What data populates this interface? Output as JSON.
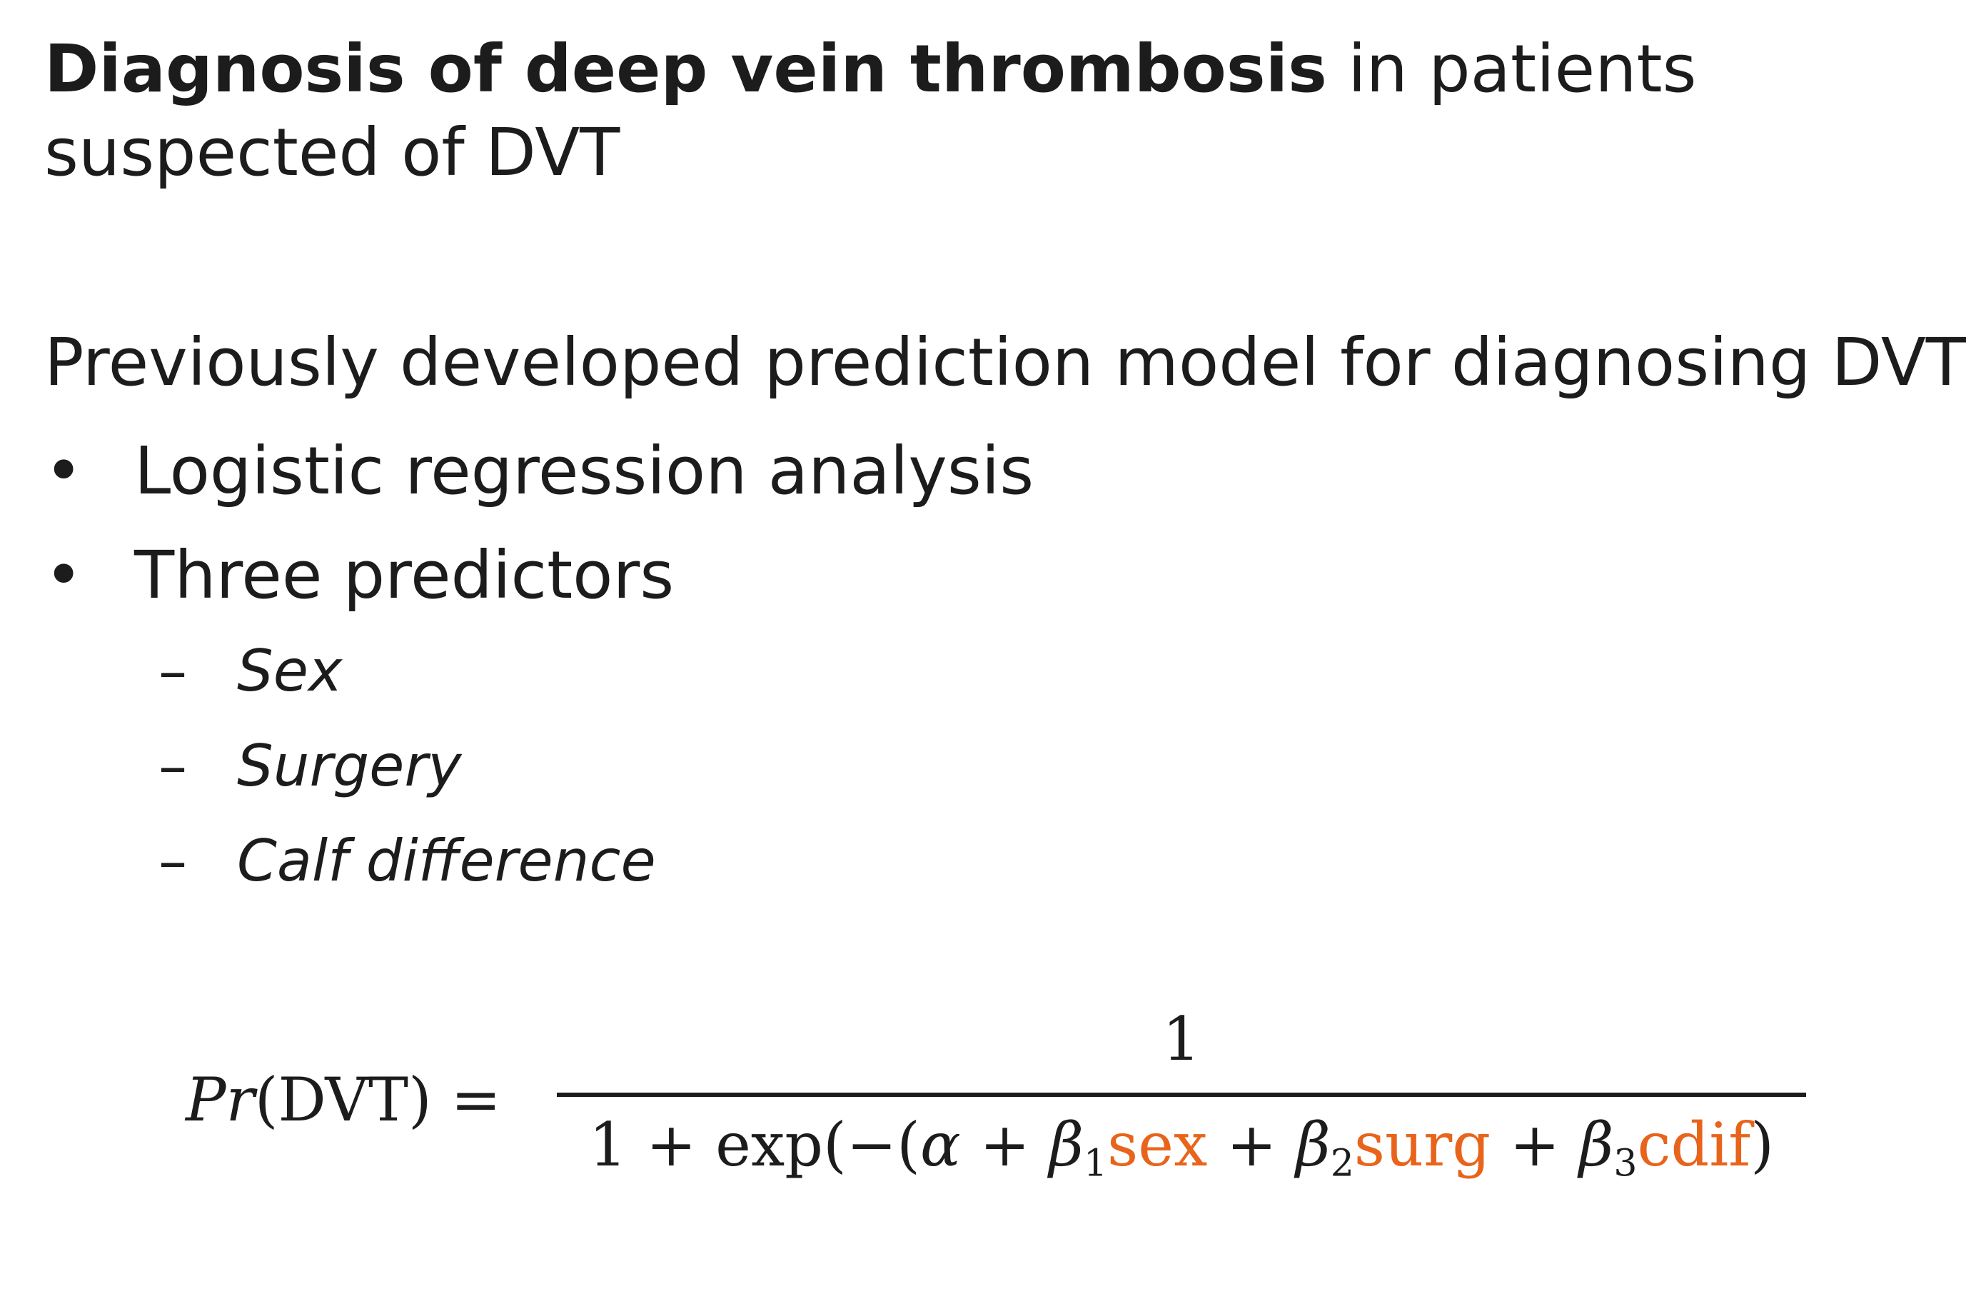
{
  "title": {
    "bold": "Diagnosis of deep vein thrombosis",
    "rest": " in patients suspected of DVT"
  },
  "intro": "Previously developed prediction model for diagnosing DVT",
  "bullets": [
    "Logistic regression analysis",
    "Three predictors"
  ],
  "bullet_symbol": "•",
  "predictors": [
    "Sex",
    "Surgery",
    "Calf difference"
  ],
  "dash_symbol": "–",
  "formula": {
    "lhs_italic": "Pr",
    "lhs_rest": "(DVT) =",
    "numerator": "1",
    "den_prefix": "1 + exp(−(",
    "alpha": "α",
    "plus": " + ",
    "beta": "β",
    "sub1": "1",
    "sub2": "2",
    "sub3": "3",
    "var_sex": "sex",
    "var_surg": "surg",
    "var_cdif": "cdif",
    "den_suffix": ")"
  },
  "colors": {
    "text": "#1c1c1c",
    "variable_highlight": "#e8641b"
  }
}
